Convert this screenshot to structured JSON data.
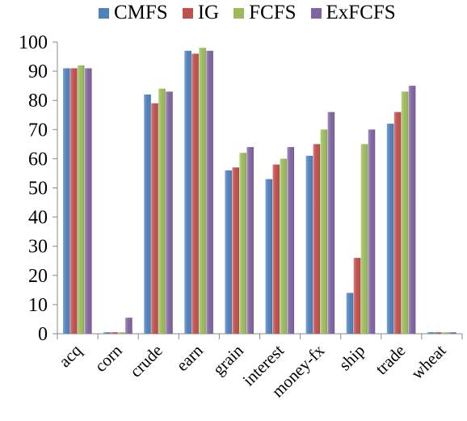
{
  "chart_data": {
    "type": "bar",
    "categories": [
      "acq",
      "corn",
      "crude",
      "earn",
      "grain",
      "interest",
      "money-fx",
      "ship",
      "trade",
      "wheat"
    ],
    "series": [
      {
        "name": "CMFS",
        "color": "#4F81BD",
        "values": [
          91,
          0.5,
          82,
          97,
          56,
          53,
          61,
          14,
          72,
          0.5
        ]
      },
      {
        "name": "IG",
        "color": "#C0504D",
        "values": [
          91,
          0.5,
          79,
          96,
          57,
          58,
          65,
          26,
          76,
          0.5
        ]
      },
      {
        "name": "FCFS",
        "color": "#9BBB59",
        "values": [
          92,
          0.5,
          84,
          98,
          62,
          60,
          70,
          65,
          83,
          0.5
        ]
      },
      {
        "name": "ExFCFS",
        "color": "#8064A2",
        "values": [
          91,
          5.5,
          83,
          97,
          64,
          64,
          76,
          70,
          85,
          0.5
        ]
      }
    ],
    "yticks": [
      0,
      10,
      20,
      30,
      40,
      50,
      60,
      70,
      80,
      90,
      100
    ],
    "ylim": [
      0,
      100
    ],
    "grid": false,
    "legend_position": "top"
  }
}
